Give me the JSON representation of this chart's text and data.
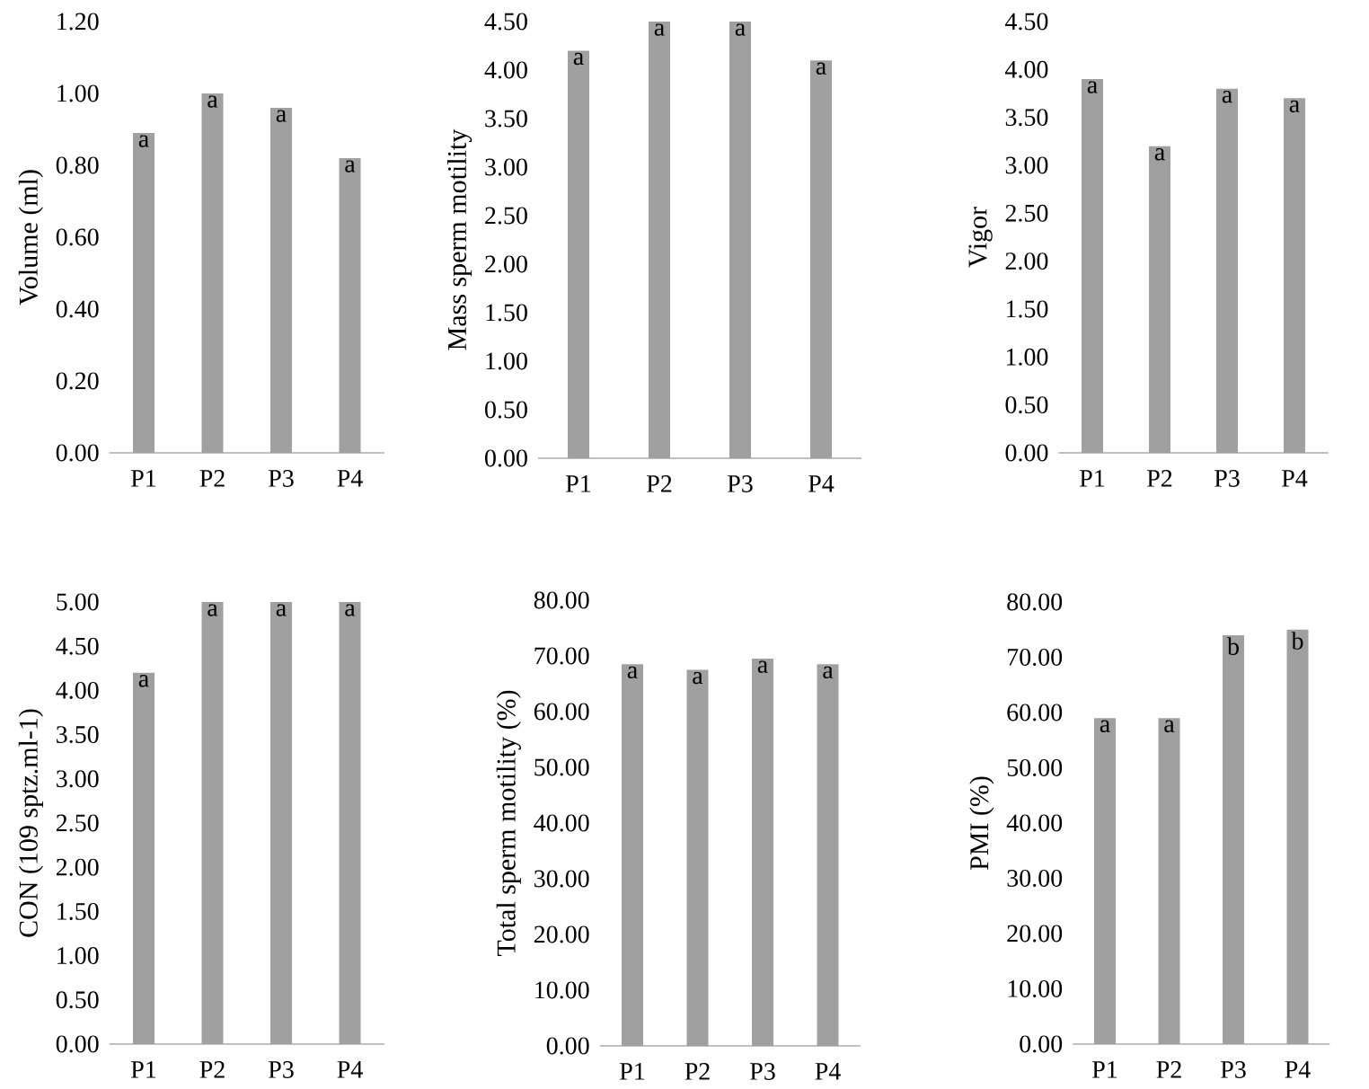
{
  "chart_data": [
    {
      "type": "bar",
      "ylabel": "Volume (ml)",
      "categories": [
        "P1",
        "P2",
        "P3",
        "P4"
      ],
      "values": [
        0.89,
        1.0,
        0.96,
        0.82
      ],
      "color": "#a0a0a0",
      "value_labels": [
        "a",
        "a",
        "a",
        "a"
      ],
      "ylim": [
        0,
        1.2
      ],
      "yticks": [
        {
          "value": 0,
          "label": "0.00"
        },
        {
          "value": 0.2,
          "label": "0.20"
        },
        {
          "value": 0.4,
          "label": "0.40"
        },
        {
          "value": 0.6,
          "label": "0.60"
        },
        {
          "value": 0.8,
          "label": "0.80"
        },
        {
          "value": 1.0,
          "label": "1.00"
        },
        {
          "value": 1.2,
          "label": "1.20"
        }
      ]
    },
    {
      "type": "bar",
      "ylabel": "Mass sperm motility",
      "categories": [
        "P1",
        "P2",
        "P3",
        "P4"
      ],
      "values": [
        4.2,
        4.5,
        4.5,
        4.1
      ],
      "color": "#a0a0a0",
      "value_labels": [
        "a",
        "a",
        "a",
        "a"
      ],
      "ylim": [
        0,
        4.5
      ],
      "yticks": [
        {
          "value": 0,
          "label": "0.00"
        },
        {
          "value": 0.5,
          "label": "0.50"
        },
        {
          "value": 1.0,
          "label": "1.00"
        },
        {
          "value": 1.5,
          "label": "1.50"
        },
        {
          "value": 2.0,
          "label": "2.00"
        },
        {
          "value": 2.5,
          "label": "2.50"
        },
        {
          "value": 3.0,
          "label": "3.00"
        },
        {
          "value": 3.5,
          "label": "3.50"
        },
        {
          "value": 4.0,
          "label": "4.00"
        },
        {
          "value": 4.5,
          "label": "4.50"
        }
      ]
    },
    {
      "type": "bar",
      "ylabel": "Vigor",
      "categories": [
        "P1",
        "P2",
        "P3",
        "P4"
      ],
      "values": [
        3.9,
        3.2,
        3.8,
        3.7
      ],
      "color": "#a0a0a0",
      "value_labels": [
        "a",
        "a",
        "a",
        "a"
      ],
      "ylim": [
        0,
        4.5
      ],
      "yticks": [
        {
          "value": 0,
          "label": "0.00"
        },
        {
          "value": 0.5,
          "label": "0.50"
        },
        {
          "value": 1.0,
          "label": "1.00"
        },
        {
          "value": 1.5,
          "label": "1.50"
        },
        {
          "value": 2.0,
          "label": "2.00"
        },
        {
          "value": 2.5,
          "label": "2.50"
        },
        {
          "value": 3.0,
          "label": "3.00"
        },
        {
          "value": 3.5,
          "label": "3.50"
        },
        {
          "value": 4.0,
          "label": "4.00"
        },
        {
          "value": 4.5,
          "label": "4.50"
        }
      ]
    },
    {
      "type": "bar",
      "ylabel": "CON  (109 sptz.ml-1)",
      "categories": [
        "P1",
        "P2",
        "P3",
        "P4"
      ],
      "values": [
        4.2,
        5.0,
        5.0,
        5.0
      ],
      "color": "#a0a0a0",
      "value_labels": [
        "a",
        "a",
        "a",
        "a"
      ],
      "ylim": [
        0,
        5.0
      ],
      "yticks": [
        {
          "value": 0,
          "label": "0.00"
        },
        {
          "value": 0.5,
          "label": "0.50"
        },
        {
          "value": 1.0,
          "label": "1.00"
        },
        {
          "value": 1.5,
          "label": "1.50"
        },
        {
          "value": 2.0,
          "label": "2.00"
        },
        {
          "value": 2.5,
          "label": "2.50"
        },
        {
          "value": 3.0,
          "label": "3.00"
        },
        {
          "value": 3.5,
          "label": "3.50"
        },
        {
          "value": 4.0,
          "label": "4.00"
        },
        {
          "value": 4.5,
          "label": "4.50"
        },
        {
          "value": 5.0,
          "label": "5.00"
        }
      ]
    },
    {
      "type": "bar",
      "ylabel": "Total sperm motility (%)",
      "categories": [
        "P1",
        "P2",
        "P3",
        "P4"
      ],
      "values": [
        68.5,
        67.5,
        69.5,
        68.5
      ],
      "color": "#a0a0a0",
      "value_labels": [
        "a",
        "a",
        "a",
        "a"
      ],
      "ylim": [
        0,
        80
      ],
      "yticks": [
        {
          "value": 0,
          "label": "0.00"
        },
        {
          "value": 10,
          "label": "10.00"
        },
        {
          "value": 20,
          "label": "20.00"
        },
        {
          "value": 30,
          "label": "30.00"
        },
        {
          "value": 40,
          "label": "40.00"
        },
        {
          "value": 50,
          "label": "50.00"
        },
        {
          "value": 60,
          "label": "60.00"
        },
        {
          "value": 70,
          "label": "70.00"
        },
        {
          "value": 80,
          "label": "80.00"
        }
      ]
    },
    {
      "type": "bar",
      "ylabel": "PMI (%)",
      "categories": [
        "P1",
        "P2",
        "P3",
        "P4"
      ],
      "values": [
        59,
        59,
        74,
        75
      ],
      "color": "#a0a0a0",
      "value_labels": [
        "a",
        "a",
        "b",
        "b"
      ],
      "ylim": [
        0,
        80
      ],
      "yticks": [
        {
          "value": 0,
          "label": "0.00"
        },
        {
          "value": 10,
          "label": "10.00"
        },
        {
          "value": 20,
          "label": "20.00"
        },
        {
          "value": 30,
          "label": "30.00"
        },
        {
          "value": 40,
          "label": "40.00"
        },
        {
          "value": 50,
          "label": "50.00"
        },
        {
          "value": 60,
          "label": "60.00"
        },
        {
          "value": 70,
          "label": "70.00"
        },
        {
          "value": 80,
          "label": "80.00"
        }
      ]
    }
  ]
}
